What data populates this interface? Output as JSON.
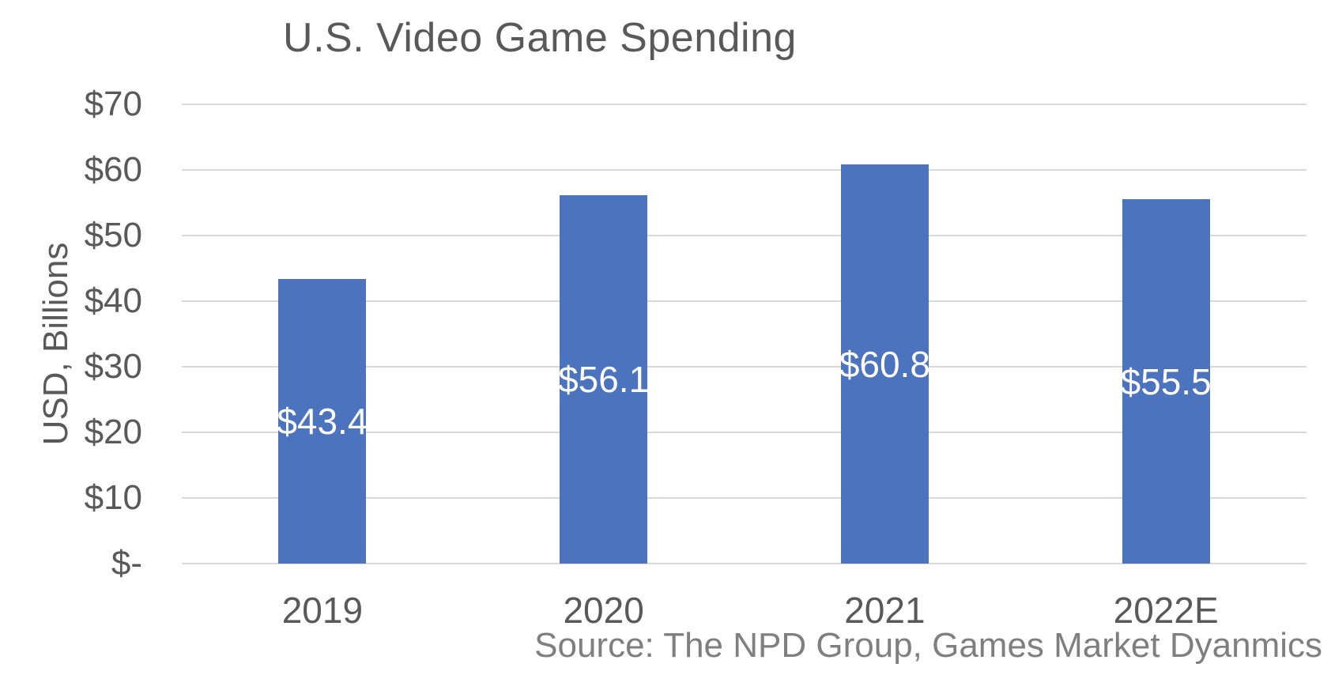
{
  "title": "U.S. Video Game Spending",
  "y_axis_title": "USD, Billions",
  "source_note": "Source: The NPD Group, Games Market Dyanmics",
  "chart_data": {
    "type": "bar",
    "title": "U.S. Video Game Spending",
    "categories": [
      "2019",
      "2020",
      "2021",
      "2022E"
    ],
    "values": [
      43.4,
      56.1,
      60.8,
      55.5
    ],
    "data_labels": [
      "$43.4",
      "$56.1",
      "$60.8",
      "$55.5"
    ],
    "xlabel": "",
    "ylabel": "USD, Billions",
    "ylim": [
      0,
      70
    ],
    "ytick_interval": 10,
    "ytick_values": [
      0,
      10,
      20,
      30,
      40,
      50,
      60,
      70
    ],
    "ytick_labels": [
      "$-",
      "$10",
      "$20",
      "$30",
      "$40",
      "$50",
      "$60",
      "$70"
    ],
    "grid": true,
    "legend_position": "none",
    "data_label_position": "inside-center",
    "colors": {
      "bar_fill": "#4C73BE",
      "gridline": "#d9d9d9",
      "axis_text": "#595959",
      "data_label_text": "#ffffff",
      "source_text": "#7f7f7f"
    },
    "source": "Source: The NPD Group, Games Market Dyanmics"
  }
}
